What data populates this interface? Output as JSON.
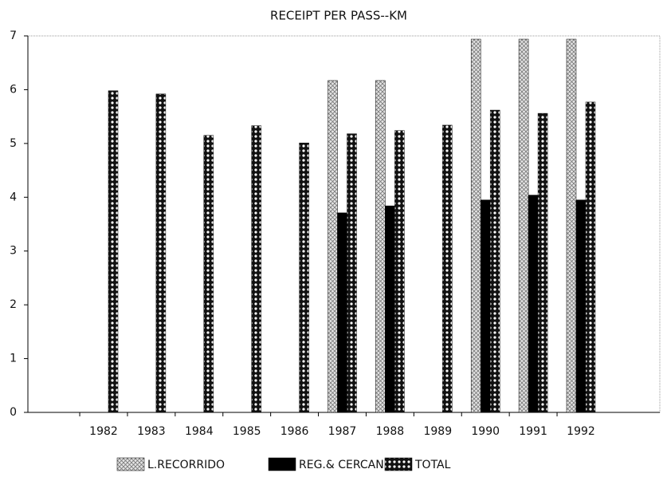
{
  "chart_data": {
    "type": "bar",
    "title": "RECEIPT PER PASS--KM",
    "categories": [
      "1982",
      "1983",
      "1984",
      "1985",
      "1986",
      "1987",
      "1988",
      "1989",
      "1990",
      "1991",
      "1992"
    ],
    "series": [
      {
        "name": "L.RECORRIDO",
        "pattern": "hatch",
        "values": [
          null,
          null,
          null,
          null,
          null,
          6.17,
          6.17,
          null,
          6.94,
          6.94,
          6.94
        ]
      },
      {
        "name": "REG.& CERCAN.",
        "pattern": "solid",
        "values": [
          null,
          null,
          null,
          null,
          null,
          3.71,
          3.84,
          null,
          3.95,
          4.04,
          3.95
        ]
      },
      {
        "name": "TOTAL",
        "pattern": "dots",
        "values": [
          5.98,
          5.92,
          5.15,
          5.33,
          5.01,
          5.18,
          5.24,
          5.34,
          5.62,
          5.56,
          5.77
        ]
      }
    ],
    "ylim": [
      0,
      7
    ],
    "yticks": [
      0,
      1,
      2,
      3,
      4,
      5,
      6,
      7
    ],
    "legend": "bottom"
  }
}
